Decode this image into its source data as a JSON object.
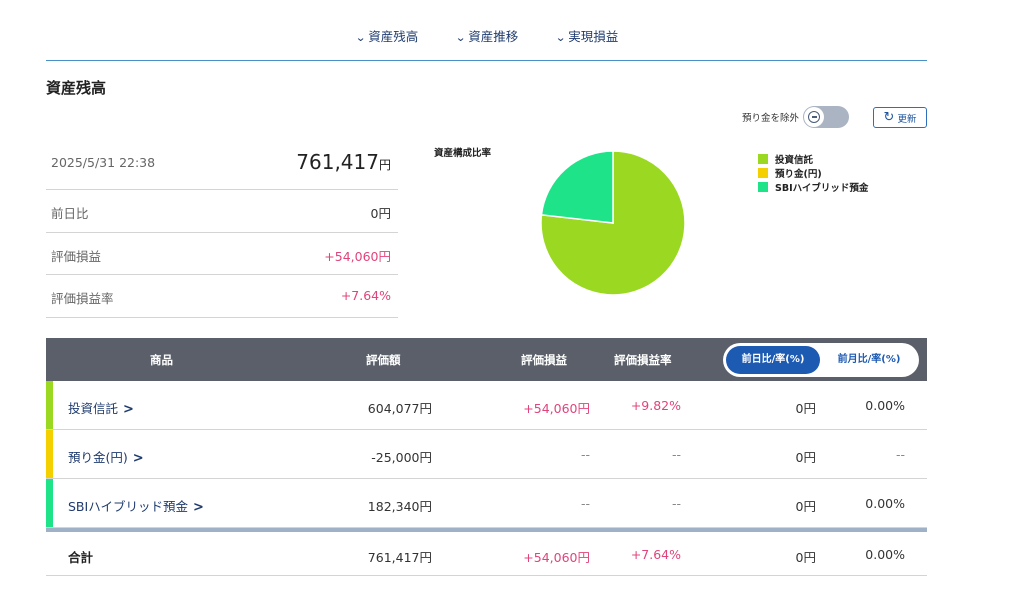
{
  "nav": [
    {
      "label": "資産残高"
    },
    {
      "label": "資産推移"
    },
    {
      "label": "実現損益"
    }
  ],
  "section_title": "資産残高",
  "summary": {
    "datetime": "2025/5/31 22:38",
    "total_value": "761,417",
    "total_unit": "円",
    "rows": [
      {
        "label": "前日比",
        "value": "0円"
      },
      {
        "label": "評価損益",
        "value": "+54,060円"
      },
      {
        "label": "評価損益率",
        "value": "+7.64%"
      }
    ]
  },
  "controls": {
    "exclude_deposit_label": "預り金を除外",
    "refresh_label": "更新"
  },
  "chart_title": "資産構成比率",
  "chart_data": {
    "type": "pie",
    "title": "資産構成比率",
    "labels": [
      "投資信託",
      "預り金(円)",
      "SBIハイブリッド預金"
    ],
    "values": [
      604077,
      0,
      182340
    ],
    "colors": [
      "#9bd822",
      "#f5d000",
      "#1ee388"
    ],
    "legend_position": "right"
  },
  "table": {
    "headers": [
      "商品",
      "評価額",
      "評価損益",
      "評価損益率"
    ],
    "toggle": {
      "active": "前日比/率(%)",
      "inactive": "前月比/率(%)"
    },
    "rows": [
      {
        "name": "投資信託",
        "color": "#9bd822",
        "value": "604,077円",
        "pl": "+54,060円",
        "rate": "+9.82%",
        "diff": "0円",
        "diff_rate": "0.00%"
      },
      {
        "name": "預り金(円)",
        "color": "#f5d000",
        "value": "-25,000円",
        "pl": "--",
        "rate": "--",
        "diff": "0円",
        "diff_rate": "--"
      },
      {
        "name": "SBIハイブリッド預金",
        "color": "#1ee388",
        "value": "182,340円",
        "pl": "--",
        "rate": "--",
        "diff": "0円",
        "diff_rate": "0.00%"
      }
    ],
    "total": {
      "name": "合計",
      "value": "761,417円",
      "pl": "+54,060円",
      "rate": "+7.64%",
      "diff": "0円",
      "diff_rate": "0.00%"
    }
  }
}
